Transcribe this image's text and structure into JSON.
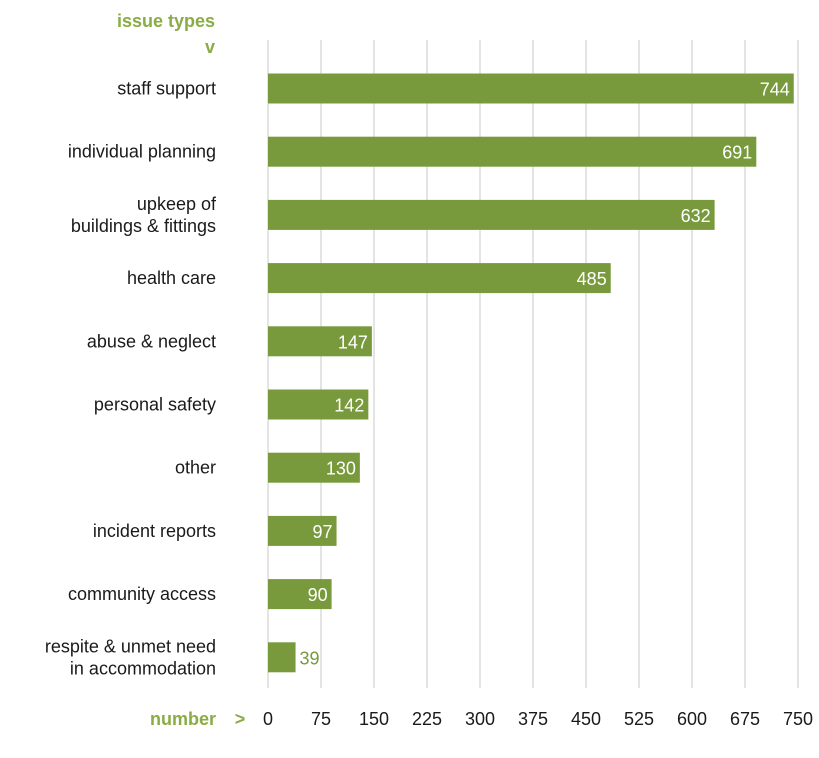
{
  "chart_data": {
    "type": "bar",
    "orientation": "horizontal",
    "ylabel": "issue types",
    "ylabel_marker": "v",
    "xlabel": "number",
    "xlabel_marker": ">",
    "categories": [
      [
        "staff support"
      ],
      [
        "individual planning"
      ],
      [
        "upkeep of",
        "buildings & fittings"
      ],
      [
        "health care"
      ],
      [
        "abuse & neglect"
      ],
      [
        "personal safety"
      ],
      [
        "other"
      ],
      [
        "incident reports"
      ],
      [
        "community access"
      ],
      [
        "respite & unmet need",
        "in accommodation"
      ]
    ],
    "values": [
      744,
      691,
      632,
      485,
      147,
      142,
      130,
      97,
      90,
      39
    ],
    "xlim": [
      0,
      750
    ],
    "xticks": [
      "0",
      "75",
      "150",
      "225",
      "300",
      "375",
      "450",
      "525",
      "600",
      "675",
      "750"
    ],
    "grid": "vertical",
    "bar_color": "#789a3c",
    "label_color_inside": "#ffffff",
    "label_color_outside": "#789a3c",
    "accent_color": "#8aac45"
  }
}
